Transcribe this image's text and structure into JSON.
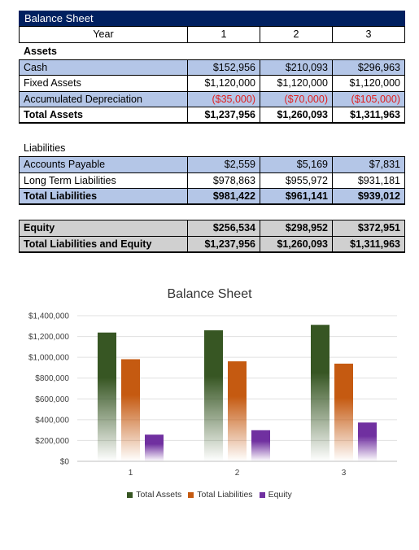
{
  "sheet": {
    "title": "Balance Sheet",
    "header": {
      "label": "Year",
      "cols": [
        "1",
        "2",
        "3"
      ]
    },
    "assets_heading": "Assets",
    "assets": [
      {
        "label": "Cash",
        "values": [
          "$152,956",
          "$210,093",
          "$296,963"
        ]
      },
      {
        "label": "Fixed Assets",
        "values": [
          "$1,120,000",
          "$1,120,000",
          "$1,120,000"
        ]
      },
      {
        "label": "Accumulated Depreciation",
        "values": [
          "($35,000)",
          "($70,000)",
          "($105,000)"
        ]
      }
    ],
    "total_assets": {
      "label": "Total Assets",
      "values": [
        "$1,237,956",
        "$1,260,093",
        "$1,311,963"
      ]
    },
    "liabilities_heading": "Liabilities",
    "liabilities": [
      {
        "label": "Accounts Payable",
        "values": [
          "$2,559",
          "$5,169",
          "$7,831"
        ]
      },
      {
        "label": "Long Term Liabilities",
        "values": [
          "$978,863",
          "$955,972",
          "$931,181"
        ]
      }
    ],
    "total_liabilities": {
      "label": "Total Liabilities",
      "values": [
        "$981,422",
        "$961,141",
        "$939,012"
      ]
    },
    "equity": {
      "label": "Equity",
      "values": [
        "$256,534",
        "$298,952",
        "$372,951"
      ]
    },
    "total_le": {
      "label": "Total Liabilities and Equity",
      "values": [
        "$1,237,956",
        "$1,260,093",
        "$1,311,963"
      ]
    }
  },
  "colors": {
    "header_bar": "#002060",
    "row_blue": "#b4c6e7",
    "row_gray": "#d0d0d0",
    "negative": "#e02020",
    "assets": "#375623",
    "liabilities": "#c55a11",
    "equity": "#7030a0"
  },
  "chart_data": {
    "type": "bar",
    "title": "Balance Sheet",
    "categories": [
      "1",
      "2",
      "3"
    ],
    "series": [
      {
        "name": "Total Assets",
        "values": [
          1237956,
          1260093,
          1311963
        ],
        "color": "#375623"
      },
      {
        "name": "Total Liabilities",
        "values": [
          981422,
          961141,
          939012
        ],
        "color": "#c55a11"
      },
      {
        "name": "Equity",
        "values": [
          256534,
          298952,
          372951
        ],
        "color": "#7030a0"
      }
    ],
    "ylim": [
      0,
      1400000
    ],
    "yticks": [
      0,
      200000,
      400000,
      600000,
      800000,
      1000000,
      1200000,
      1400000
    ],
    "ytick_labels": [
      "$0",
      "$200,000",
      "$400,000",
      "$600,000",
      "$800,000",
      "$1,000,000",
      "$1,200,000",
      "$1,400,000"
    ],
    "grid": true,
    "legend": "bottom",
    "bar_fill": "gradient fading to white at bottom"
  }
}
